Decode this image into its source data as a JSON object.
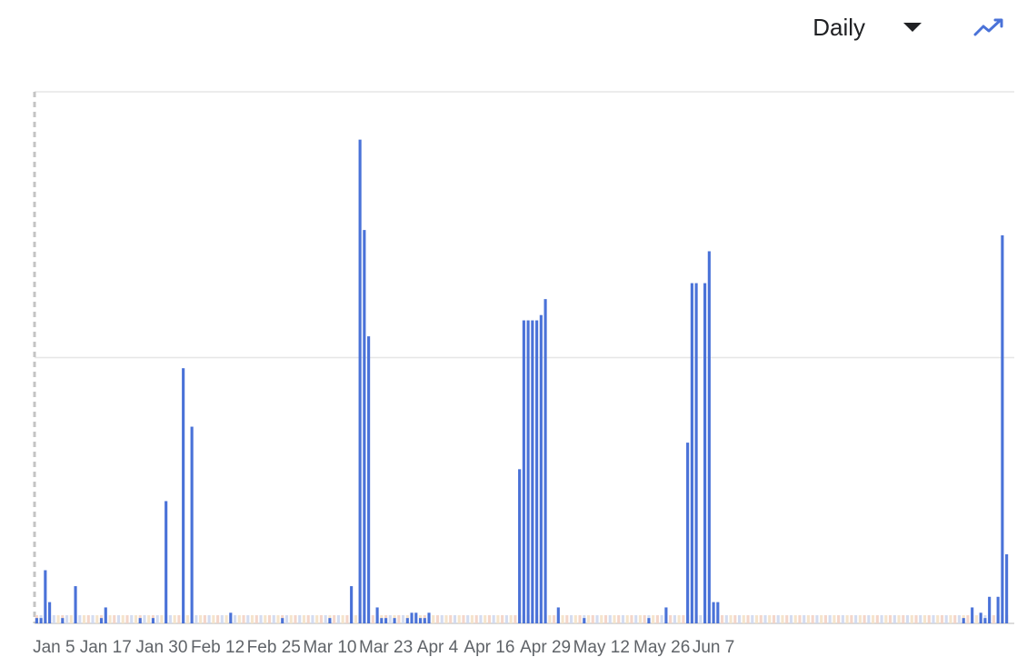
{
  "toolbar": {
    "period_select": "Daily",
    "chart_type_icon": "trending-line-icon",
    "accent_color": "#4a72d8"
  },
  "chart_data": {
    "type": "bar",
    "title": "",
    "xlabel": "",
    "ylabel": "",
    "y_tick_labels_visible": false,
    "ylim": [
      0,
      100
    ],
    "grid": true,
    "x_tick_labels": [
      "Jan 5",
      "Jan 17",
      "Jan 30",
      "Feb 12",
      "Feb 25",
      "Mar 10",
      "Mar 23",
      "Apr 4",
      "Apr 16",
      "Apr 29",
      "May 12",
      "May 26",
      "Jun 7"
    ],
    "x_tick_indices": [
      4,
      16,
      29,
      42,
      55,
      68,
      81,
      93,
      105,
      118,
      131,
      145,
      157
    ],
    "series": [
      {
        "color": "#4a72d8",
        "values": [
          1,
          1,
          10,
          4,
          0,
          0,
          1,
          0,
          0,
          7,
          0,
          0,
          0,
          0,
          0,
          1,
          3,
          0,
          0,
          0,
          0,
          0,
          0,
          0,
          1,
          0,
          0,
          1,
          0,
          0,
          23,
          0,
          0,
          0,
          48,
          0,
          37,
          0,
          0,
          0,
          0,
          0,
          0,
          0,
          0,
          2,
          0,
          0,
          0,
          0,
          0,
          0,
          0,
          0,
          0,
          0,
          0,
          1,
          0,
          0,
          0,
          0,
          0,
          0,
          0,
          0,
          0,
          0,
          1,
          0,
          0,
          0,
          0,
          7,
          0,
          91,
          74,
          54,
          0,
          3,
          1,
          1,
          0,
          1,
          0,
          0,
          1,
          2,
          2,
          1,
          1,
          2,
          0,
          0,
          0,
          0,
          0,
          0,
          0,
          0,
          0,
          0,
          0,
          0,
          0,
          0,
          0,
          0,
          0,
          0,
          0,
          0,
          29,
          57,
          57,
          57,
          57,
          58,
          61,
          0,
          0,
          3,
          0,
          0,
          0,
          0,
          0,
          1,
          0,
          0,
          0,
          0,
          0,
          0,
          0,
          0,
          0,
          0,
          0,
          0,
          0,
          0,
          1,
          0,
          0,
          0,
          3,
          0,
          0,
          0,
          0,
          34,
          64,
          64,
          0,
          64,
          70,
          4,
          4,
          0,
          0,
          0,
          0,
          0,
          0,
          0,
          0,
          0,
          0,
          0,
          0,
          0,
          0,
          0,
          0,
          0,
          0,
          0,
          0,
          0,
          0,
          0,
          0,
          0,
          0,
          0,
          0,
          0,
          0,
          0,
          0,
          0,
          0,
          0,
          0,
          0,
          0,
          0,
          0,
          0,
          0,
          0,
          0,
          0,
          0,
          0,
          0,
          0,
          0,
          0,
          0,
          0,
          0,
          0,
          0,
          1,
          0,
          3,
          0,
          2,
          1,
          5,
          0,
          5,
          73,
          13
        ]
      }
    ]
  }
}
